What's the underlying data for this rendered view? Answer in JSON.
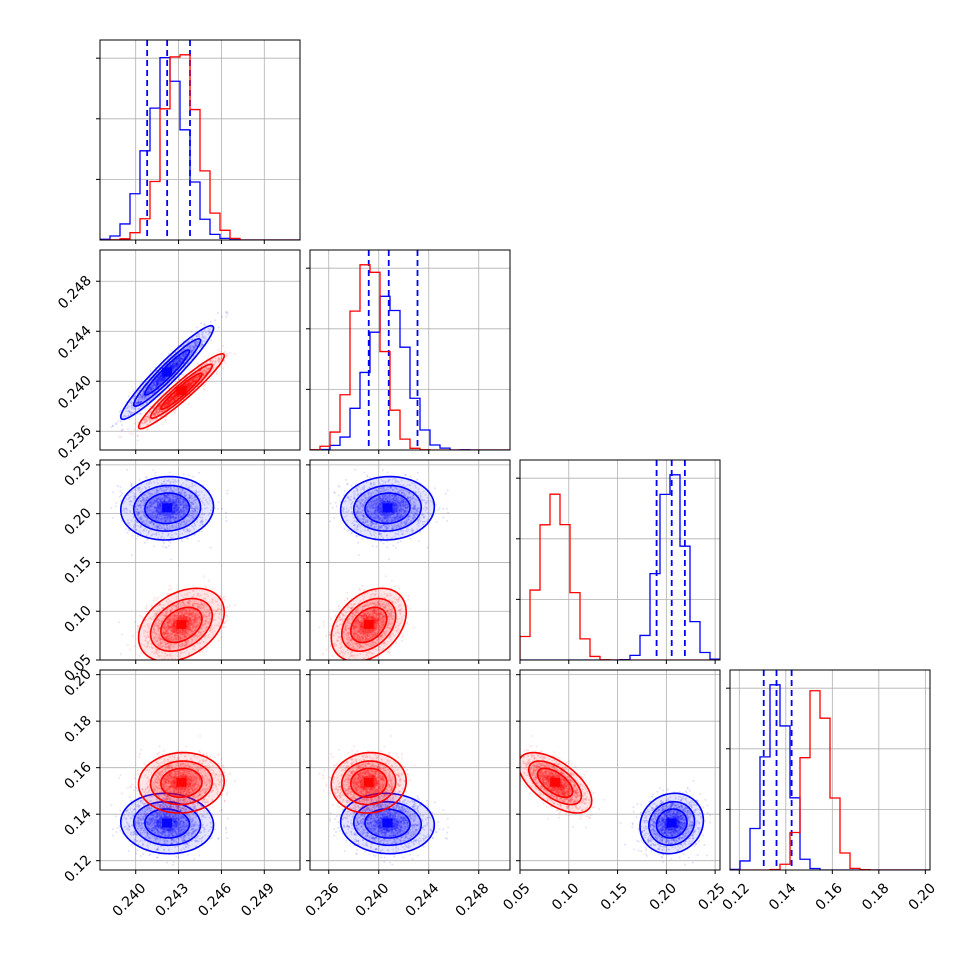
{
  "chart_data": {
    "type": "corner",
    "colors": {
      "series_a": "#0000ff",
      "series_b": "#ff0000"
    },
    "grid": true,
    "params": [
      {
        "range": [
          0.2375,
          0.2515
        ],
        "ticks": [
          {
            "v": 0.24,
            "label": "0.240"
          },
          {
            "v": 0.243,
            "label": "0.243"
          },
          {
            "v": 0.246,
            "label": "0.246"
          },
          {
            "v": 0.249,
            "label": "0.249"
          }
        ]
      },
      {
        "range": [
          0.2345,
          0.2505
        ],
        "ticks": [
          {
            "v": 0.236,
            "label": "0.236"
          },
          {
            "v": 0.24,
            "label": "0.240"
          },
          {
            "v": 0.244,
            "label": "0.244"
          },
          {
            "v": 0.248,
            "label": "0.248"
          }
        ]
      },
      {
        "range": [
          0.05,
          0.255
        ],
        "ticks": [
          {
            "v": 0.05,
            "label": "0.05"
          },
          {
            "v": 0.1,
            "label": "0.10"
          },
          {
            "v": 0.15,
            "label": "0.15"
          },
          {
            "v": 0.2,
            "label": "0.20"
          },
          {
            "v": 0.25,
            "label": "0.25"
          }
        ]
      },
      {
        "range": [
          0.116,
          0.202
        ],
        "ticks": [
          {
            "v": 0.12,
            "label": "0.12"
          },
          {
            "v": 0.14,
            "label": "0.14"
          },
          {
            "v": 0.16,
            "label": "0.16"
          },
          {
            "v": 0.18,
            "label": "0.18"
          },
          {
            "v": 0.2,
            "label": "0.20"
          }
        ]
      }
    ],
    "series": [
      {
        "color": "#0000ff",
        "means": [
          0.2422,
          0.2407,
          0.2055,
          0.136
        ],
        "sigmas": [
          0.0013,
          0.0015,
          0.013,
          0.0052
        ],
        "corr": [
          [
            1,
            0.95,
            0.05,
            -0.05
          ],
          [
            0.95,
            1,
            0.05,
            -0.05
          ],
          [
            0.05,
            0.05,
            1,
            0.1
          ],
          [
            -0.05,
            -0.05,
            0.1,
            1
          ]
        ],
        "quantiles": [
          [
            0.2408,
            0.2422,
            0.2438
          ],
          [
            0.2392,
            0.2408,
            0.2431
          ],
          [
            0.19,
            0.2055,
            0.219
          ],
          [
            0.1305,
            0.136,
            0.1425
          ]
        ]
      },
      {
        "color": "#ff0000",
        "means": [
          0.2432,
          0.2392,
          0.086,
          0.1535
        ],
        "sigmas": [
          0.0012,
          0.0012,
          0.015,
          0.0052
        ],
        "corr": [
          [
            1,
            0.95,
            0.35,
            0.05
          ],
          [
            0.95,
            1,
            0.35,
            0.05
          ],
          [
            0.35,
            0.35,
            1,
            -0.6
          ],
          [
            0.05,
            0.05,
            -0.6,
            1
          ]
        ],
        "quantiles": []
      }
    ]
  }
}
